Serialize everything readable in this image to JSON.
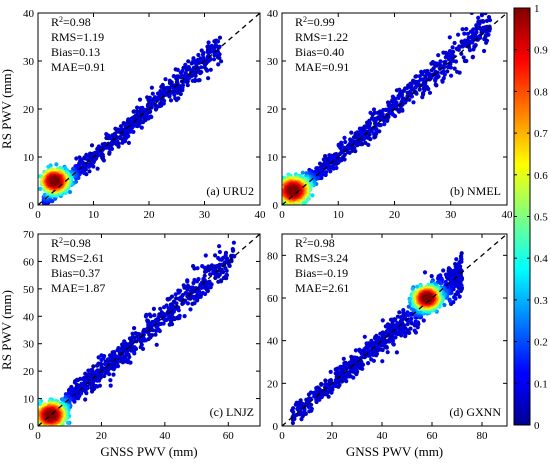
{
  "chart_data": [
    {
      "type": "scatter",
      "panel_label": "(a) URU2",
      "xlim": [
        0,
        40
      ],
      "ylim": [
        0,
        40
      ],
      "xticks": [
        0,
        10,
        20,
        30,
        40
      ],
      "yticks": [
        0,
        10,
        20,
        30,
        40
      ],
      "xlabel": "",
      "ylabel": "RS PWV (mm)",
      "stats": [
        "R²=0.98",
        "RMS=1.19",
        "Bias=0.13",
        "MAE=0.91"
      ],
      "reference_line": "1:1 dashed",
      "point_cloud": {
        "x_range": [
          1,
          33
        ],
        "density_peak": [
          3,
          5
        ],
        "slope": 1.0,
        "spread": 1.2
      }
    },
    {
      "type": "scatter",
      "panel_label": "(b) NMEL",
      "xlim": [
        0,
        40
      ],
      "ylim": [
        0,
        40
      ],
      "xticks": [
        0,
        10,
        20,
        30,
        40
      ],
      "yticks": [
        0,
        10,
        20,
        30,
        40
      ],
      "xlabel": "",
      "ylabel": "",
      "stats": [
        "R²=0.99",
        "RMS=1.22",
        "Bias=0.40",
        "MAE=0.91"
      ],
      "reference_line": "1:1 dashed",
      "point_cloud": {
        "x_range": [
          0.5,
          37
        ],
        "density_peak": [
          2,
          3
        ],
        "slope": 1.02,
        "spread": 1.3
      }
    },
    {
      "type": "scatter",
      "panel_label": "(c) LNJZ",
      "xlim": [
        0,
        70
      ],
      "ylim": [
        0,
        70
      ],
      "xticks": [
        0,
        20,
        40,
        60
      ],
      "yticks": [
        0,
        10,
        20,
        30,
        40,
        50,
        60,
        70
      ],
      "xlabel": "GNSS PWV (mm)",
      "ylabel": "RS PWV (mm)",
      "stats": [
        "R²=0.98",
        "RMS=2.61",
        "Bias=0.37",
        "MAE=1.87"
      ],
      "reference_line": "1:1 dashed",
      "point_cloud": {
        "x_range": [
          1,
          62
        ],
        "density_peak": [
          4,
          4
        ],
        "slope": 1.0,
        "spread": 2.6
      }
    },
    {
      "type": "scatter",
      "panel_label": "(d) GXNN",
      "xlim": [
        0,
        90
      ],
      "ylim": [
        0,
        90
      ],
      "xticks": [
        0,
        20,
        40,
        60,
        80
      ],
      "yticks": [
        0,
        20,
        40,
        60,
        80
      ],
      "xlabel": "GNSS PWV (mm)",
      "ylabel": "",
      "stats": [
        "R²=0.98",
        "RMS=3.24",
        "Bias=-0.19",
        "MAE=2.61"
      ],
      "reference_line": "1:1 dashed",
      "point_cloud": {
        "x_range": [
          4,
          72
        ],
        "density_peak": [
          58,
          60
        ],
        "slope": 1.0,
        "spread": 3.2
      }
    }
  ],
  "colorbar": {
    "colormap": "jet",
    "range": [
      0,
      1
    ],
    "ticks": [
      "0",
      "0.1",
      "0.2",
      "0.3",
      "0.4",
      "0.5",
      "0.6",
      "0.7",
      "0.8",
      "0.9",
      "1"
    ]
  }
}
